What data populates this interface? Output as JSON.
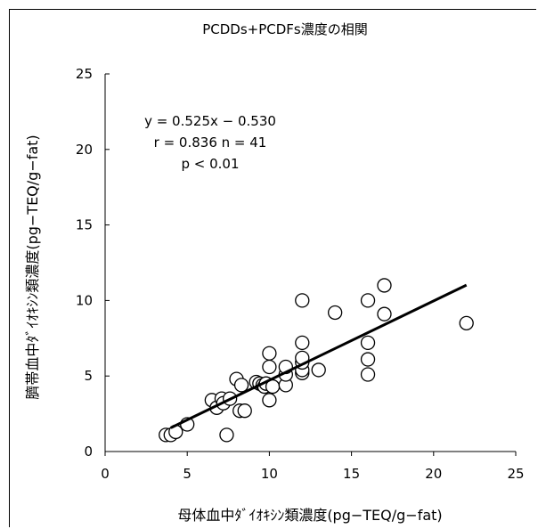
{
  "chart_data": {
    "type": "scatter",
    "title": "PCDDs+PCDFs濃度の相関",
    "xlabel": "母体血中ﾀﾞｲｵｷｼﾝ類濃度(pg−TEQ/g−fat)",
    "ylabel": "臍帯血中ﾀﾞｲｵｷｼﾝ類濃度(pg−TEQ/g−fat)",
    "xlim": [
      0,
      25
    ],
    "ylim": [
      0,
      25
    ],
    "x_ticks": [
      "0",
      "5",
      "10",
      "15",
      "20",
      "25"
    ],
    "y_ticks": [
      "0",
      "5",
      "10",
      "15",
      "20",
      "25"
    ],
    "grid": false,
    "annotation": [
      "y = 0.525x − 0.530",
      "r = 0.836 n = 41",
      "p < 0.01"
    ],
    "regression": {
      "slope": 0.525,
      "intercept": -0.53,
      "x_range": [
        4.0,
        22.0
      ]
    },
    "points": [
      {
        "x": 3.7,
        "y": 1.1
      },
      {
        "x": 4.0,
        "y": 1.1
      },
      {
        "x": 4.3,
        "y": 1.3
      },
      {
        "x": 5.0,
        "y": 1.8
      },
      {
        "x": 6.5,
        "y": 3.4
      },
      {
        "x": 6.8,
        "y": 2.9
      },
      {
        "x": 7.1,
        "y": 3.5
      },
      {
        "x": 7.2,
        "y": 3.2
      },
      {
        "x": 7.4,
        "y": 1.1
      },
      {
        "x": 7.6,
        "y": 3.5
      },
      {
        "x": 8.0,
        "y": 4.8
      },
      {
        "x": 8.2,
        "y": 2.7
      },
      {
        "x": 8.3,
        "y": 4.4
      },
      {
        "x": 8.5,
        "y": 2.7
      },
      {
        "x": 9.2,
        "y": 4.6
      },
      {
        "x": 9.4,
        "y": 4.5
      },
      {
        "x": 9.6,
        "y": 4.4
      },
      {
        "x": 9.7,
        "y": 4.3
      },
      {
        "x": 9.8,
        "y": 4.5
      },
      {
        "x": 10.0,
        "y": 3.4
      },
      {
        "x": 10.0,
        "y": 5.6
      },
      {
        "x": 10.0,
        "y": 6.5
      },
      {
        "x": 10.2,
        "y": 4.3
      },
      {
        "x": 11.0,
        "y": 4.4
      },
      {
        "x": 11.0,
        "y": 5.1
      },
      {
        "x": 11.0,
        "y": 5.6
      },
      {
        "x": 12.0,
        "y": 5.2
      },
      {
        "x": 12.0,
        "y": 5.4
      },
      {
        "x": 12.0,
        "y": 5.9
      },
      {
        "x": 12.0,
        "y": 6.2
      },
      {
        "x": 12.0,
        "y": 7.2
      },
      {
        "x": 12.0,
        "y": 10.0
      },
      {
        "x": 13.0,
        "y": 5.4
      },
      {
        "x": 14.0,
        "y": 9.2
      },
      {
        "x": 16.0,
        "y": 5.1
      },
      {
        "x": 16.0,
        "y": 6.1
      },
      {
        "x": 16.0,
        "y": 7.2
      },
      {
        "x": 16.0,
        "y": 10.0
      },
      {
        "x": 17.0,
        "y": 9.1
      },
      {
        "x": 17.0,
        "y": 11.0
      },
      {
        "x": 22.0,
        "y": 8.5
      }
    ]
  }
}
